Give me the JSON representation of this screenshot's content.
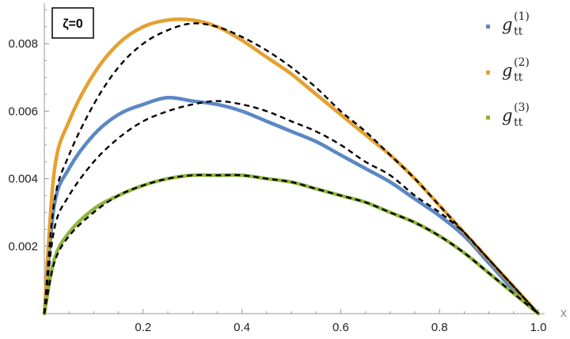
{
  "chart_data": {
    "type": "line",
    "annotation": "ζ=0",
    "xlabel": "x",
    "ylabel": "",
    "xlim": [
      0,
      1.0
    ],
    "ylim": [
      0,
      0.0092
    ],
    "x_ticks": [
      0.2,
      0.4,
      0.6,
      0.8,
      1.0
    ],
    "x_tick_labels": [
      "0.2",
      "0.4",
      "0.6",
      "0.8",
      "1.0"
    ],
    "y_ticks": [
      0.002,
      0.004,
      0.006,
      0.008
    ],
    "y_tick_labels": [
      "0.002",
      "0.004",
      "0.006",
      "0.008"
    ],
    "grid": false,
    "legend_position": "right",
    "legend": [
      {
        "base": "g",
        "sub": "tt",
        "sup": "(1)"
      },
      {
        "base": "g",
        "sub": "tt",
        "sup": "(2)"
      },
      {
        "base": "g",
        "sub": "tt",
        "sup": "(3)"
      }
    ],
    "x": [
      0.0,
      0.02,
      0.05,
      0.1,
      0.15,
      0.2,
      0.25,
      0.3,
      0.35,
      0.4,
      0.45,
      0.5,
      0.55,
      0.6,
      0.65,
      0.7,
      0.75,
      0.8,
      0.85,
      0.9,
      0.95,
      1.0
    ],
    "series": [
      {
        "name": "g_tt^(1)",
        "color": "#5b87c5",
        "values": [
          0.0,
          0.0032,
          0.0043,
          0.0053,
          0.0059,
          0.0062,
          0.0064,
          0.0063,
          0.0062,
          0.006,
          0.0057,
          0.0054,
          0.0051,
          0.0047,
          0.0043,
          0.0039,
          0.0034,
          0.0029,
          0.0023,
          0.0015,
          0.0007,
          0.0
        ]
      },
      {
        "name": "g_tt^(2)",
        "color": "#e5a02f",
        "values": [
          0.0,
          0.0042,
          0.0057,
          0.0071,
          0.008,
          0.0085,
          0.0087,
          0.0087,
          0.0085,
          0.0081,
          0.0076,
          0.0071,
          0.0065,
          0.0059,
          0.0053,
          0.0047,
          0.004,
          0.0032,
          0.0024,
          0.0016,
          0.0008,
          0.0
        ]
      },
      {
        "name": "g_tt^(3)",
        "color": "#8fb43a",
        "values": [
          0.0,
          0.0016,
          0.0024,
          0.0031,
          0.0035,
          0.0038,
          0.004,
          0.0041,
          0.0041,
          0.0041,
          0.004,
          0.0039,
          0.0037,
          0.0035,
          0.0033,
          0.003,
          0.0027,
          0.0023,
          0.0018,
          0.0012,
          0.0006,
          0.0
        ]
      }
    ],
    "fits": [
      {
        "style": "dashed",
        "color": "#000000",
        "values": [
          0.0,
          0.0033,
          0.0047,
          0.0062,
          0.0073,
          0.008,
          0.0084,
          0.0086,
          0.0085,
          0.0082,
          0.0078,
          0.0073,
          0.0067,
          0.006,
          0.0054,
          0.0047,
          0.004,
          0.0032,
          0.0024,
          0.0016,
          0.0008,
          0.0
        ]
      },
      {
        "style": "dashed",
        "color": "#000000",
        "values": [
          0.0,
          0.0025,
          0.0035,
          0.0045,
          0.0052,
          0.0057,
          0.006,
          0.0062,
          0.0063,
          0.0062,
          0.006,
          0.0057,
          0.0054,
          0.005,
          0.0045,
          0.0041,
          0.0035,
          0.003,
          0.0024,
          0.0016,
          0.0008,
          0.0
        ]
      },
      {
        "style": "dashed",
        "color": "#000000",
        "values": [
          0.0,
          0.0015,
          0.0023,
          0.003,
          0.0035,
          0.0038,
          0.004,
          0.0041,
          0.0041,
          0.0041,
          0.004,
          0.0039,
          0.0037,
          0.0035,
          0.0033,
          0.003,
          0.0027,
          0.0023,
          0.0018,
          0.0012,
          0.0006,
          0.0
        ]
      }
    ]
  }
}
